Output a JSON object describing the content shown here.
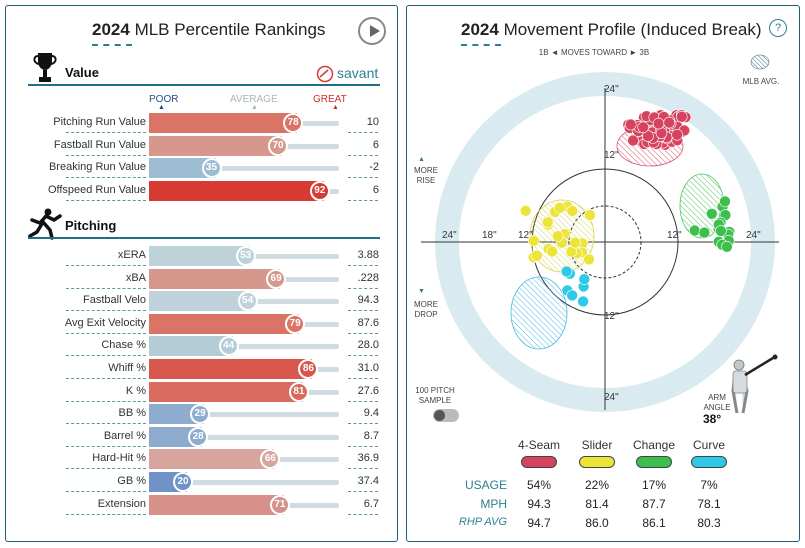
{
  "left": {
    "title_year": "2024",
    "title_text": "MLB Percentile Rankings",
    "value_section": "Value",
    "savant_label": "savant",
    "scale_poor": "POOR",
    "scale_avg": "AVERAGE",
    "scale_great": "GREAT",
    "value_rows": [
      {
        "label": "Pitching Run Value",
        "pct": 78,
        "value": "10",
        "color": "#d97467"
      },
      {
        "label": "Fastball Run Value",
        "pct": 70,
        "value": "6",
        "color": "#d6978d"
      },
      {
        "label": "Breaking Run Value",
        "pct": 35,
        "value": "-2",
        "color": "#9fbdd2"
      },
      {
        "label": "Offspeed Run Value",
        "pct": 92,
        "value": "6",
        "color": "#d73a33"
      }
    ],
    "pitching_section": "Pitching",
    "pitching_rows": [
      {
        "label": "xERA",
        "pct": 53,
        "value": "3.88",
        "color": "#bdd3d9"
      },
      {
        "label": "xBA",
        "pct": 69,
        "value": ".228",
        "color": "#d6978d"
      },
      {
        "label": "Fastball Velo",
        "pct": 54,
        "value": "94.3",
        "color": "#bfd2da"
      },
      {
        "label": "Avg Exit Velocity",
        "pct": 79,
        "value": "87.6",
        "color": "#d97467"
      },
      {
        "label": "Chase %",
        "pct": 44,
        "value": "28.0",
        "color": "#b3ccd6"
      },
      {
        "label": "Whiff %",
        "pct": 86,
        "value": "31.0",
        "color": "#d7574c"
      },
      {
        "label": "K %",
        "pct": 81,
        "value": "27.6",
        "color": "#d86a5e"
      },
      {
        "label": "BB %",
        "pct": 29,
        "value": "9.4",
        "color": "#8eacce"
      },
      {
        "label": "Barrel %",
        "pct": 28,
        "value": "8.7",
        "color": "#8daccd"
      },
      {
        "label": "Hard-Hit %",
        "pct": 66,
        "value": "36.9",
        "color": "#d5a59e"
      },
      {
        "label": "GB %",
        "pct": 20,
        "value": "37.4",
        "color": "#6f93c7"
      },
      {
        "label": "Extension",
        "pct": 71,
        "value": "6.7",
        "color": "#d6918a"
      }
    ]
  },
  "right": {
    "title_year": "2024",
    "title_text": "Movement Profile (Induced Break)",
    "help": "?",
    "moves_toward": "1B ◄ MOVES TOWARD ► 3B",
    "mlb_avg": "MLB AVG.",
    "more_rise": "MORE RISE",
    "more_drop": "MORE DROP",
    "sample_label": "100 PITCH SAMPLE",
    "arm_angle_label": "ARM ANGLE",
    "arm_angle_value": "38°",
    "axis_labels": {
      "top24": "24\"",
      "top12": "12\"",
      "bot12": "12\"",
      "bot24": "24\"",
      "left24": "24\"",
      "left18": "18\"",
      "left12": "12\"",
      "right12": "12\"",
      "right24": "24\""
    },
    "pitches": [
      {
        "name": "4-Seam",
        "usage": "54%",
        "mph": "94.3",
        "rhp_avg": "94.7",
        "color": "#d6435f"
      },
      {
        "name": "Slider",
        "usage": "22%",
        "mph": "81.4",
        "rhp_avg": "86.0",
        "color": "#ede43a"
      },
      {
        "name": "Change",
        "usage": "17%",
        "mph": "87.7",
        "rhp_avg": "86.1",
        "color": "#3cbf4c"
      },
      {
        "name": "Curve",
        "usage": "7%",
        "mph": "78.1",
        "rhp_avg": "80.3",
        "color": "#2fc9e8"
      }
    ],
    "row_usage": "USAGE",
    "row_mph": "MPH",
    "row_rhp": "RHP AVG"
  }
}
